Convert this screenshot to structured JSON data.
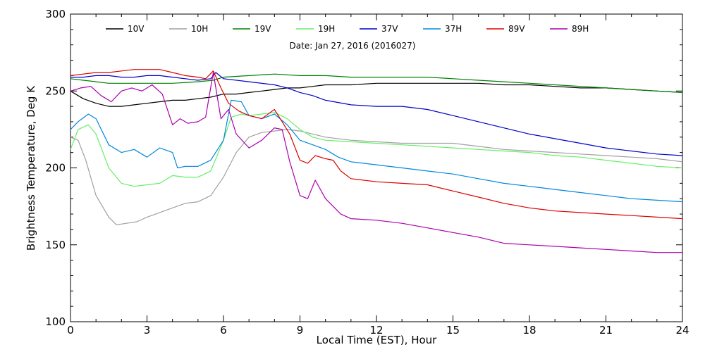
{
  "chart_data": {
    "type": "line",
    "title": "",
    "annotation": "Date: Jan 27, 2016 (2016027)",
    "xlabel": "Local Time (EST), Hour",
    "ylabel": "Brightness Temperature, Deg K",
    "xlim": [
      0,
      24
    ],
    "ylim": [
      100,
      300
    ],
    "xticks": [
      0,
      3,
      6,
      9,
      12,
      15,
      18,
      21,
      24
    ],
    "yticks": [
      100,
      150,
      200,
      250,
      300
    ],
    "grid": false,
    "legend_position": "top",
    "series": [
      {
        "name": "10V",
        "color": "#000000",
        "x": [
          0,
          0.5,
          1,
          1.5,
          2,
          2.5,
          3,
          3.5,
          4,
          4.5,
          5,
          5.5,
          6,
          6.5,
          7,
          7.5,
          8,
          8.5,
          9,
          9.5,
          10,
          11,
          12,
          13,
          14,
          15,
          16,
          17,
          18,
          19,
          20,
          21,
          22,
          23,
          24
        ],
        "y": [
          250,
          245,
          242,
          240,
          240,
          241,
          242,
          243,
          244,
          244,
          245,
          246,
          248,
          248,
          249,
          250,
          251,
          252,
          252,
          253,
          254,
          254,
          255,
          255,
          255,
          255,
          255,
          254,
          254,
          253,
          252,
          252,
          251,
          250,
          249
        ]
      },
      {
        "name": "10H",
        "color": "#a0a0a0",
        "x": [
          0,
          0.3,
          0.6,
          1,
          1.5,
          1.8,
          2.2,
          2.6,
          3,
          3.5,
          4,
          4.5,
          5,
          5.5,
          6,
          6.5,
          7,
          7.5,
          8,
          8.5,
          9,
          9.5,
          10,
          11,
          12,
          13,
          14,
          15,
          16,
          17,
          18,
          19,
          20,
          21,
          22,
          23,
          24
        ],
        "y": [
          220,
          218,
          205,
          182,
          168,
          163,
          164,
          165,
          168,
          171,
          174,
          177,
          178,
          182,
          194,
          210,
          220,
          223,
          224,
          225,
          224,
          222,
          220,
          218,
          217,
          216,
          216,
          216,
          214,
          212,
          211,
          210,
          209,
          208,
          207,
          206,
          204
        ]
      },
      {
        "name": "19V",
        "color": "#008000",
        "x": [
          0,
          0.5,
          1,
          1.5,
          2,
          3,
          4,
          5,
          5.6,
          6,
          7,
          8,
          9,
          10,
          11,
          12,
          13,
          14,
          15,
          16,
          17,
          18,
          19,
          20,
          21,
          22,
          23,
          24
        ],
        "y": [
          258,
          257,
          256,
          255,
          255,
          255,
          255,
          256,
          257,
          259,
          260,
          261,
          260,
          260,
          259,
          259,
          259,
          259,
          258,
          257,
          256,
          255,
          254,
          253,
          252,
          251,
          250,
          249
        ]
      },
      {
        "name": "19H",
        "color": "#66ee66",
        "x": [
          0,
          0.3,
          0.7,
          1,
          1.5,
          2,
          2.5,
          3,
          3.5,
          4,
          4.5,
          5,
          5.5,
          6,
          6.3,
          6.7,
          7,
          7.5,
          8,
          8.5,
          9,
          9.5,
          10,
          11,
          12,
          13,
          14,
          15,
          16,
          17,
          18,
          19,
          20,
          21,
          22,
          23,
          24
        ],
        "y": [
          212,
          225,
          228,
          222,
          200,
          190,
          188,
          189,
          190,
          195,
          194,
          194,
          198,
          218,
          233,
          235,
          234,
          235,
          236,
          232,
          225,
          220,
          218,
          217,
          216,
          215,
          214,
          213,
          212,
          211,
          210,
          208,
          207,
          205,
          203,
          201,
          200
        ]
      },
      {
        "name": "37V",
        "color": "#0000cc",
        "x": [
          0,
          0.5,
          1,
          1.5,
          2,
          2.5,
          3,
          3.5,
          4,
          4.5,
          5,
          5.5,
          5.7,
          6,
          7,
          8,
          8.5,
          9,
          9.5,
          10,
          11,
          12,
          13,
          14,
          15,
          16,
          17,
          18,
          19,
          20,
          21,
          22,
          23,
          24
        ],
        "y": [
          259,
          259,
          260,
          260,
          259,
          259,
          260,
          260,
          259,
          258,
          257,
          258,
          262,
          258,
          256,
          254,
          252,
          249,
          247,
          244,
          241,
          240,
          240,
          238,
          234,
          230,
          226,
          222,
          219,
          216,
          213,
          211,
          209,
          208
        ]
      },
      {
        "name": "37H",
        "color": "#0088dd",
        "x": [
          0,
          0.3,
          0.7,
          1,
          1.5,
          2,
          2.5,
          3,
          3.5,
          4,
          4.2,
          4.5,
          5,
          5.5,
          6,
          6.3,
          6.7,
          7,
          7.5,
          8,
          8.5,
          9,
          9.5,
          10,
          10.5,
          11,
          12,
          13,
          14,
          15,
          16,
          17,
          18,
          19,
          20,
          21,
          22,
          23,
          24
        ],
        "y": [
          225,
          230,
          235,
          232,
          215,
          210,
          212,
          207,
          213,
          210,
          200,
          201,
          201,
          205,
          218,
          244,
          243,
          234,
          232,
          235,
          228,
          218,
          215,
          212,
          207,
          204,
          202,
          200,
          198,
          196,
          193,
          190,
          188,
          186,
          184,
          182,
          180,
          179,
          178
        ]
      },
      {
        "name": "89V",
        "color": "#dd0000",
        "x": [
          0,
          0.5,
          1,
          1.5,
          2,
          2.5,
          3,
          3.5,
          4,
          4.5,
          5,
          5.3,
          5.6,
          5.9,
          6.2,
          6.6,
          7,
          7.5,
          8,
          8.3,
          8.6,
          9,
          9.3,
          9.6,
          10,
          10.3,
          10.6,
          11,
          12,
          13,
          14,
          15,
          16,
          17,
          18,
          19,
          20,
          21,
          22,
          23,
          24
        ],
        "y": [
          260,
          261,
          262,
          262,
          263,
          264,
          264,
          264,
          262,
          260,
          259,
          258,
          263,
          252,
          242,
          237,
          234,
          232,
          238,
          230,
          222,
          205,
          203,
          208,
          206,
          205,
          198,
          193,
          191,
          190,
          189,
          185,
          181,
          177,
          174,
          172,
          171,
          170,
          169,
          168,
          167
        ]
      },
      {
        "name": "89H",
        "color": "#aa00aa",
        "x": [
          0,
          0.4,
          0.8,
          1.2,
          1.6,
          2,
          2.4,
          2.8,
          3.2,
          3.6,
          4,
          4.3,
          4.6,
          5,
          5.3,
          5.6,
          5.9,
          6.2,
          6.5,
          7,
          7.5,
          8,
          8.3,
          8.6,
          9,
          9.3,
          9.6,
          10,
          10.3,
          10.6,
          11,
          12,
          13,
          14,
          15,
          16,
          17,
          18,
          19,
          20,
          21,
          22,
          23,
          24
        ],
        "y": [
          250,
          252,
          253,
          247,
          243,
          250,
          252,
          250,
          254,
          248,
          228,
          232,
          229,
          230,
          233,
          262,
          232,
          238,
          222,
          213,
          218,
          226,
          225,
          204,
          182,
          180,
          192,
          180,
          175,
          170,
          167,
          166,
          164,
          161,
          158,
          155,
          151,
          150,
          149,
          148,
          147,
          146,
          145,
          145
        ]
      }
    ]
  }
}
